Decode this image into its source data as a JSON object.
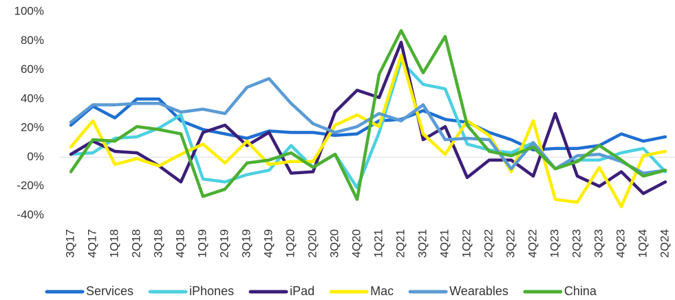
{
  "chart_data": {
    "type": "line",
    "categories": [
      "3Q17",
      "4Q17",
      "1Q18",
      "2Q18",
      "3Q18",
      "4Q18",
      "1Q19",
      "2Q19",
      "3Q19",
      "4Q19",
      "1Q20",
      "2Q20",
      "3Q20",
      "4Q20",
      "1Q21",
      "2Q21",
      "3Q21",
      "4Q21",
      "1Q22",
      "2Q22",
      "3Q22",
      "4Q22",
      "1Q23",
      "2Q23",
      "3Q23",
      "4Q23",
      "1Q24",
      "2Q24"
    ],
    "series": [
      {
        "name": "Services",
        "color": "#1f6fd1",
        "values": [
          22,
          35,
          27,
          40,
          40,
          25,
          19,
          16,
          13,
          18,
          17,
          17,
          15,
          16,
          25,
          26,
          32,
          26,
          24,
          17,
          12,
          5,
          6,
          6,
          8,
          16,
          11,
          14
        ]
      },
      {
        "name": "iPhones",
        "color": "#4dd0e1",
        "values": [
          2,
          3,
          13,
          14,
          20,
          29,
          -15,
          -17,
          -12,
          -9,
          8,
          -7,
          2,
          -21,
          17,
          66,
          50,
          47,
          9,
          5,
          3,
          10,
          -8,
          -2,
          -2,
          3,
          6,
          -10
        ]
      },
      {
        "name": "iPad",
        "color": "#3b1e78",
        "values": [
          2,
          11,
          4,
          3,
          -6,
          -17,
          17,
          22,
          8,
          17,
          -11,
          -10,
          31,
          46,
          41,
          79,
          12,
          21,
          -14,
          -2,
          -2,
          -13,
          30,
          -13,
          -20,
          -10,
          -25,
          -17
        ]
      },
      {
        "name": "Mac",
        "color": "#ffee00",
        "values": [
          7,
          25,
          -5,
          -1,
          -6,
          2,
          9,
          -4,
          11,
          -5,
          -3,
          -3,
          22,
          29,
          21,
          70,
          16,
          2,
          25,
          15,
          -10,
          25,
          -29,
          -31,
          -7,
          -34,
          1,
          4
        ]
      },
      {
        "name": "Wearables",
        "color": "#5b9bd5",
        "values": [
          24,
          36,
          36,
          37,
          37,
          31,
          33,
          30,
          48,
          54,
          37,
          23,
          17,
          21,
          30,
          25,
          36,
          12,
          13,
          12,
          -8,
          10,
          -8,
          1,
          2,
          -3,
          -11,
          -9
        ]
      },
      {
        "name": "China",
        "color": "#4caf32",
        "values": [
          -10,
          12,
          11,
          21,
          19,
          16,
          -27,
          -22,
          -4,
          -2,
          3,
          -7,
          2,
          -29,
          57,
          87,
          58,
          83,
          22,
          4,
          1,
          7,
          -8,
          -3,
          8,
          -2,
          -13,
          -9
        ]
      }
    ],
    "ylim": [
      -40,
      100
    ],
    "yticks": [
      {
        "value": -40,
        "label": "-40%"
      },
      {
        "value": -20,
        "label": "-20%"
      },
      {
        "value": 0,
        "label": "0%"
      },
      {
        "value": 20,
        "label": "20%"
      },
      {
        "value": 40,
        "label": "40%"
      },
      {
        "value": 60,
        "label": "60%"
      },
      {
        "value": 80,
        "label": "80%"
      },
      {
        "value": 100,
        "label": "100%"
      }
    ],
    "legend": "bottom"
  }
}
